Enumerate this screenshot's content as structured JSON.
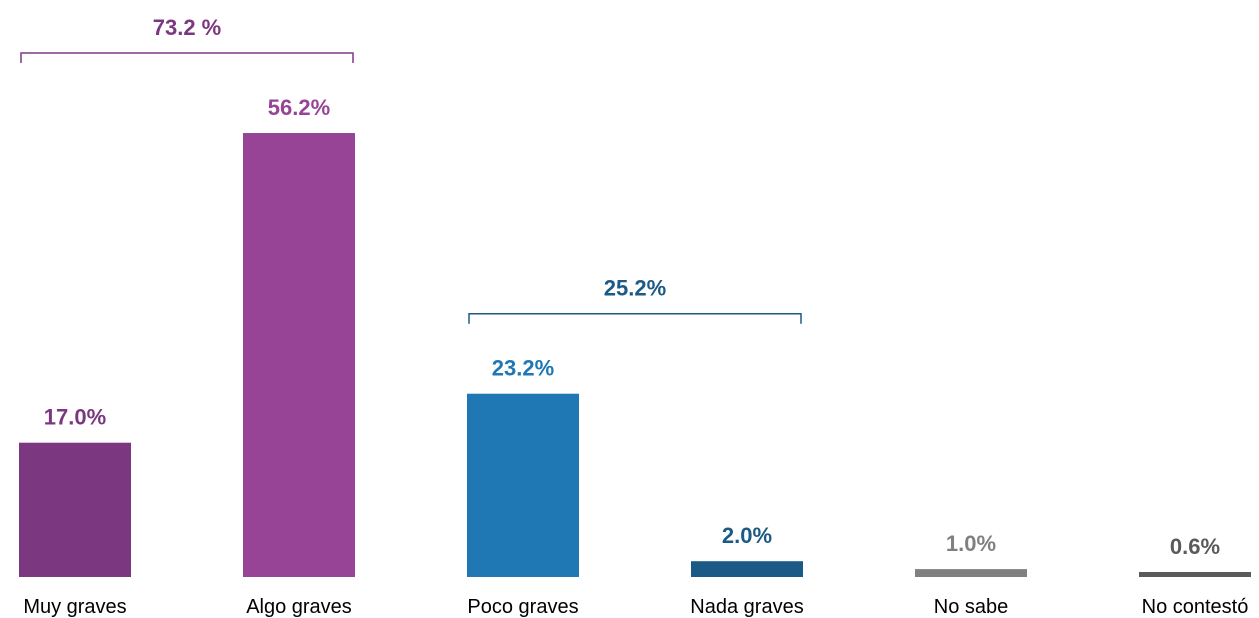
{
  "chart_data": {
    "type": "bar",
    "title": "",
    "xlabel": "",
    "ylabel": "",
    "ylim": [
      0,
      60
    ],
    "grid": false,
    "legend": "none",
    "categories": [
      "Muy graves",
      "Algo graves",
      "Poco graves",
      "Nada graves",
      "No sabe",
      "No contestó"
    ],
    "values": [
      17.0,
      56.2,
      23.2,
      2.0,
      1.0,
      0.6
    ],
    "value_labels": [
      "17.0%",
      "56.2%",
      "23.2%",
      "2.0%",
      "1.0%",
      "0.6%"
    ],
    "bar_colors": [
      "#7b3880",
      "#974496",
      "#1f77b4",
      "#1b5a86",
      "#808080",
      "#5a5a5a"
    ],
    "label_colors": [
      "#7b3880",
      "#974496",
      "#1f77b4",
      "#1b5a86",
      "#808080",
      "#5a5a5a"
    ],
    "annotations": [
      {
        "label": "73.2 %",
        "from": 0,
        "to": 1,
        "color": "#7b3880"
      },
      {
        "label": "25.2%",
        "from": 2,
        "to": 3,
        "color": "#1b5a86"
      }
    ]
  }
}
